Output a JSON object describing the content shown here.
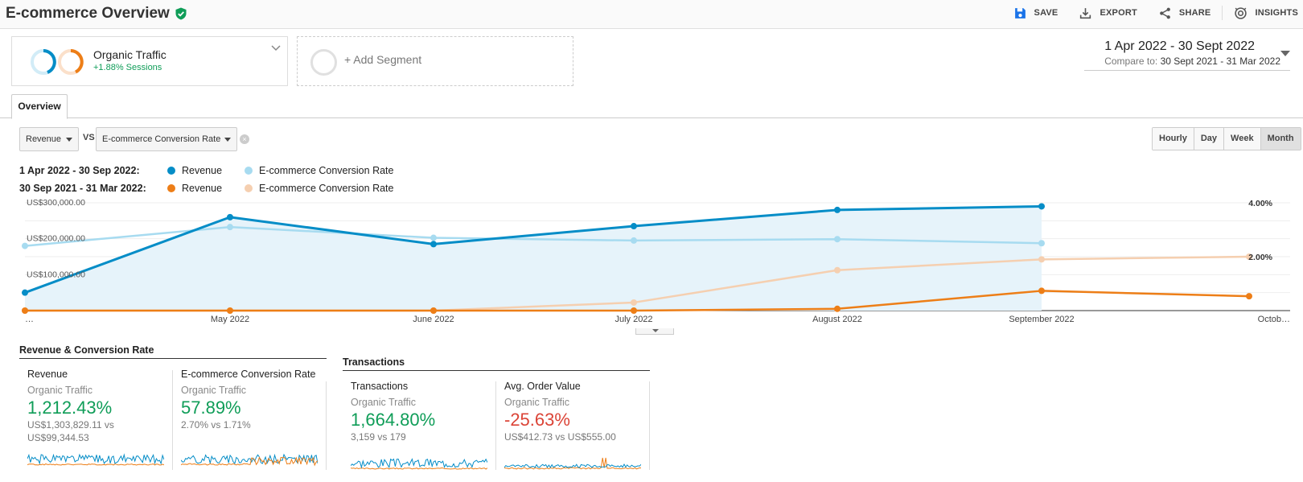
{
  "header": {
    "title": "E-commerce Overview",
    "actions": [
      {
        "label": "SAVE",
        "icon": "save-icon"
      },
      {
        "label": "EXPORT",
        "icon": "export-icon"
      },
      {
        "label": "SHARE",
        "icon": "share-icon"
      },
      {
        "label": "INSIGHTS",
        "icon": "insights-icon"
      }
    ]
  },
  "segments": {
    "active": {
      "name": "Organic Traffic",
      "delta": "+1.88% Sessions"
    },
    "add_label": "+ Add Segment"
  },
  "date_range": {
    "primary": "1 Apr 2022 - 30 Sept 2022",
    "compare_prefix": "Compare to:",
    "compare": "30 Sept 2021 - 31 Mar 2022"
  },
  "tabs": [
    {
      "label": "Overview"
    }
  ],
  "controls": {
    "metric1": "Revenue",
    "vs": "VS",
    "metric2": "E-commerce Conversion Rate",
    "granularity": [
      "Hourly",
      "Day",
      "Week",
      "Month"
    ],
    "granularity_selected": "Month"
  },
  "legend": {
    "rows": [
      {
        "range": "1 Apr 2022 - 30 Sep 2022:",
        "items": [
          {
            "label": "Revenue",
            "color": "#058dc7"
          },
          {
            "label": "E-commerce Conversion Rate",
            "color": "#a7dbf0"
          }
        ]
      },
      {
        "range": "30 Sep 2021 - 31 Mar 2022:",
        "items": [
          {
            "label": "Revenue",
            "color": "#ed7e17"
          },
          {
            "label": "E-commerce Conversion Rate",
            "color": "#f5cfb0"
          }
        ]
      }
    ]
  },
  "chart_data": {
    "type": "line",
    "x_labels": [
      "…",
      "May 2022",
      "June 2022",
      "July 2022",
      "August 2022",
      "September 2022",
      "Octob…"
    ],
    "y_left_ticks": [
      "US$300,000.00",
      "US$200,000.00",
      "US$100,000.00"
    ],
    "y_left_range": [
      0,
      300000
    ],
    "y_right_ticks": [
      "4.00%",
      "2.00%"
    ],
    "y_right_range": [
      0,
      4.0
    ],
    "grid": true,
    "series": [
      {
        "label": "Revenue",
        "period": "current",
        "axis": "left",
        "color": "#058dc7",
        "area": true,
        "values": [
          50000,
          260000,
          185000,
          235000,
          280000,
          290000
        ]
      },
      {
        "label": "E-commerce Conversion Rate",
        "period": "current",
        "axis": "right",
        "color": "#a7dbf0",
        "values": [
          2.4,
          3.1,
          2.7,
          2.6,
          2.65,
          2.5
        ]
      },
      {
        "label": "Revenue",
        "period": "previous",
        "axis": "left",
        "color": "#ed7e17",
        "values": [
          0,
          0,
          0,
          0,
          5000,
          55000,
          40000
        ]
      },
      {
        "label": "E-commerce Conversion Rate",
        "period": "previous",
        "axis": "right",
        "color": "#f5cfb0",
        "values": [
          0,
          0,
          0,
          0.3,
          1.5,
          1.9,
          2.0
        ]
      }
    ]
  },
  "groups": [
    {
      "title": "Revenue & Conversion Rate"
    },
    {
      "title": "Transactions"
    }
  ],
  "scorecards": [
    {
      "name": "Revenue",
      "segment": "Organic Traffic",
      "value": "1,212.43%",
      "trend": "positive",
      "compare1": "US$1,303,829.11 vs",
      "compare2": "US$99,344.53"
    },
    {
      "name": "E-commerce Conversion Rate",
      "segment": "Organic Traffic",
      "value": "57.89%",
      "trend": "positive",
      "compare1": "2.70% vs 1.71%",
      "compare2": ""
    },
    {
      "name": "Transactions",
      "segment": "Organic Traffic",
      "value": "1,664.80%",
      "trend": "positive",
      "compare1": "3,159 vs 179",
      "compare2": ""
    },
    {
      "name": "Avg. Order Value",
      "segment": "Organic Traffic",
      "value": "-25.63%",
      "trend": "negative",
      "compare1": "US$412.73 vs US$555.00",
      "compare2": ""
    }
  ]
}
